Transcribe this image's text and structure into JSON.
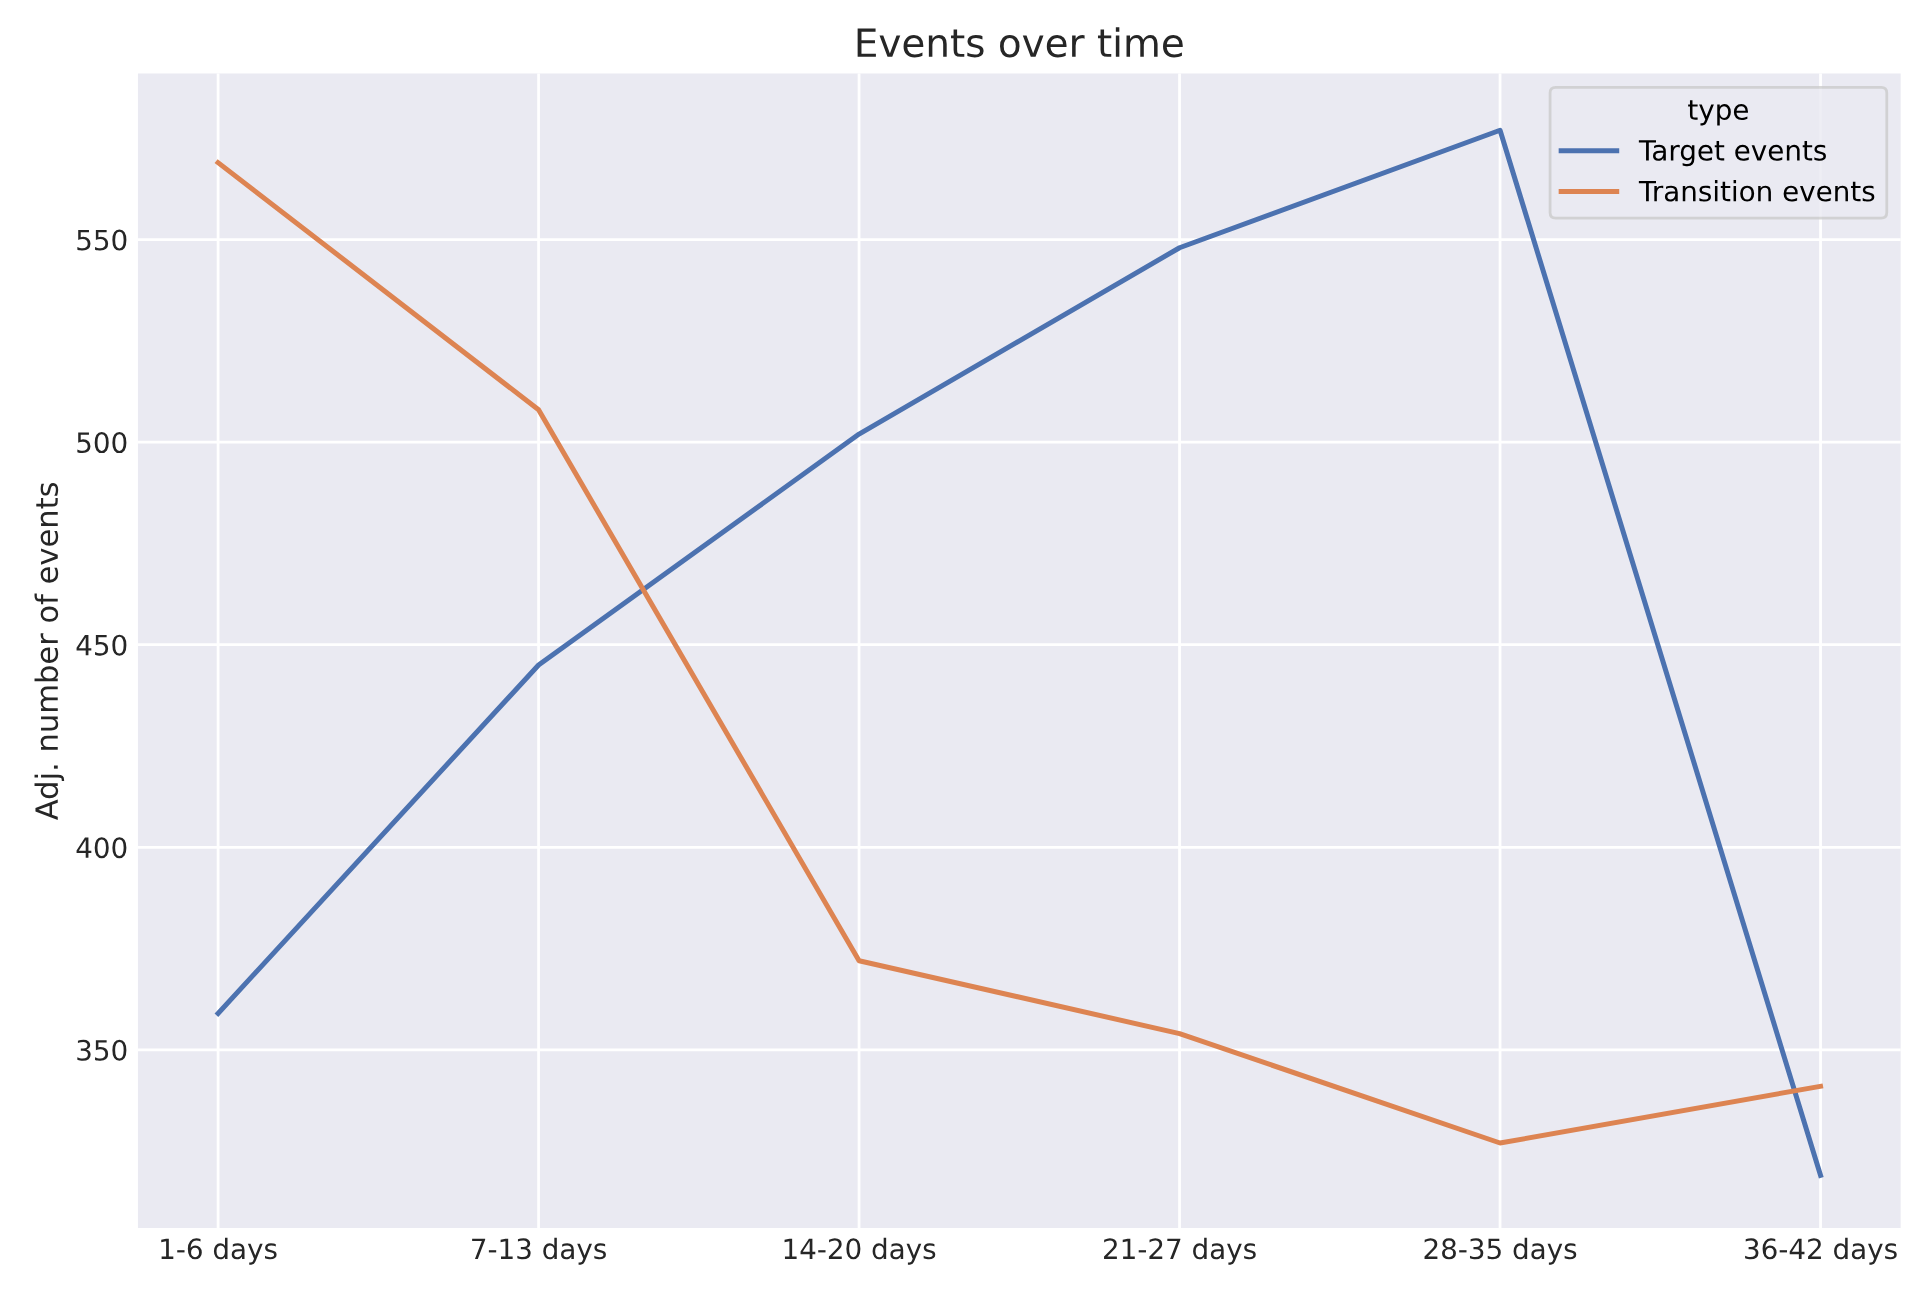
{
  "chart_data": {
    "type": "line",
    "title": "Events over time",
    "ylabel": "Adj. number of events",
    "legend_title": "type",
    "categories": [
      "1-6 days",
      "7-13 days",
      "14-20 days",
      "21-27 days",
      "28-35 days",
      "36-42 days"
    ],
    "series": [
      {
        "name": "Target events",
        "color": "#4c72b0",
        "values": [
          359,
          445,
          502,
          548,
          577,
          319
        ]
      },
      {
        "name": "Transition events",
        "color": "#dd8452",
        "values": [
          569,
          508,
          372,
          354,
          327,
          341
        ]
      }
    ],
    "ylim": [
      306,
      591
    ],
    "yticks": [
      350,
      400,
      450,
      500,
      550
    ],
    "grid": true,
    "legend": "top right",
    "marker": "none",
    "line_style": "solid"
  }
}
